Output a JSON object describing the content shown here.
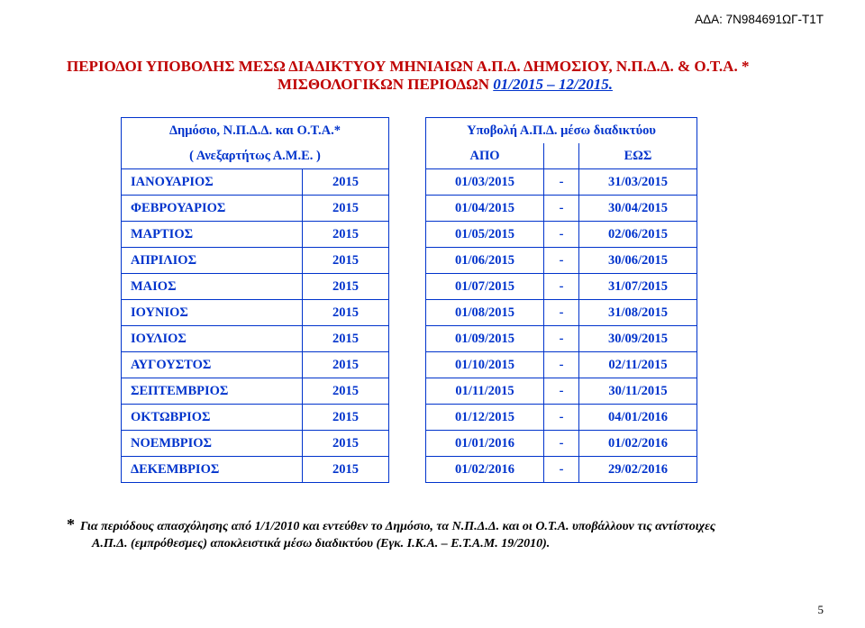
{
  "ada_code": "ΑΔΑ: 7Ν984691ΩΓ-Τ1Τ",
  "title_line1": "ΠΕΡΙΟΔΟΙ ΥΠΟΒΟΛΗΣ ΜΕΣΩ ΔΙΑΔΙΚΤΥΟΥ ΜΗΝΙΑΙΩΝ Α.Π.Δ. ΔΗΜΟΣΙΟΥ, Ν.Π.Δ.Δ.  & Ο.Τ.Α.  *",
  "title_line2_prefix": "ΜΙΣΘΟΛΟΓΙΚΩΝ ΠΕΡΙΟΔΩΝ  ",
  "title_line2_underline": "01/2015 – 12/2015.",
  "left_header_top": "Δημόσιο, Ν.Π.Δ.Δ. και Ο.Τ.Α.*",
  "left_header_bot": "( Ανεξαρτήτως Α.Μ.Ε. )",
  "right_header_top": "Υποβολή Α.Π.Δ. μέσω διαδικτύου",
  "right_header_from": "ΑΠΟ",
  "right_header_to": "ΕΩΣ",
  "dash": "-",
  "months": [
    {
      "name": "ΙΑΝΟΥΑΡΙΟΣ",
      "year": "2015",
      "from": "01/03/2015",
      "to": "31/03/2015"
    },
    {
      "name": "ΦΕΒΡΟΥΑΡΙΟΣ",
      "year": "2015",
      "from": "01/04/2015",
      "to": "30/04/2015"
    },
    {
      "name": "ΜΑΡΤΙΟΣ",
      "year": "2015",
      "from": "01/05/2015",
      "to": "02/06/2015"
    },
    {
      "name": "ΑΠΡΙΛΙΟΣ",
      "year": "2015",
      "from": "01/06/2015",
      "to": "30/06/2015"
    },
    {
      "name": "ΜΑΙΟΣ",
      "year": "2015",
      "from": "01/07/2015",
      "to": "31/07/2015"
    },
    {
      "name": "ΙΟΥΝΙΟΣ",
      "year": "2015",
      "from": "01/08/2015",
      "to": "31/08/2015"
    },
    {
      "name": "ΙΟΥΛΙΟΣ",
      "year": "2015",
      "from": "01/09/2015",
      "to": "30/09/2015"
    },
    {
      "name": "ΑΥΓΟΥΣΤΟΣ",
      "year": "2015",
      "from": "01/10/2015",
      "to": "02/11/2015"
    },
    {
      "name": "ΣΕΠΤΕΜΒΡΙΟΣ",
      "year": "2015",
      "from": "01/11/2015",
      "to": "30/11/2015"
    },
    {
      "name": "ΟΚΤΩΒΡΙΟΣ",
      "year": "2015",
      "from": "01/12/2015",
      "to": "04/01/2016"
    },
    {
      "name": "ΝΟΕΜΒΡΙΟΣ",
      "year": "2015",
      "from": "01/01/2016",
      "to": "01/02/2016"
    },
    {
      "name": "ΔΕΚΕΜΒΡΙΟΣ",
      "year": "2015",
      "from": "01/02/2016",
      "to": "29/02/2016"
    }
  ],
  "footnote_star": "*",
  "footnote_line1": "Για περιόδους απασχόλησης από 1/1/2010 και εντεύθεν το Δημόσιο, τα Ν.Π.Δ.Δ. και οι Ο.Τ.Α. υποβάλλουν τις αντίστοιχες",
  "footnote_line2": "Α.Π.Δ. (εμπρόθεσμες)  αποκλειστικά μέσω διαδικτύου (Εγκ. Ι.Κ.Α. – Ε.Τ.Α.Μ. 19/2010).",
  "page_number": "5",
  "colors": {
    "red": "#bf0000",
    "blue": "#0033cc",
    "black": "#000000",
    "background": "#ffffff"
  }
}
